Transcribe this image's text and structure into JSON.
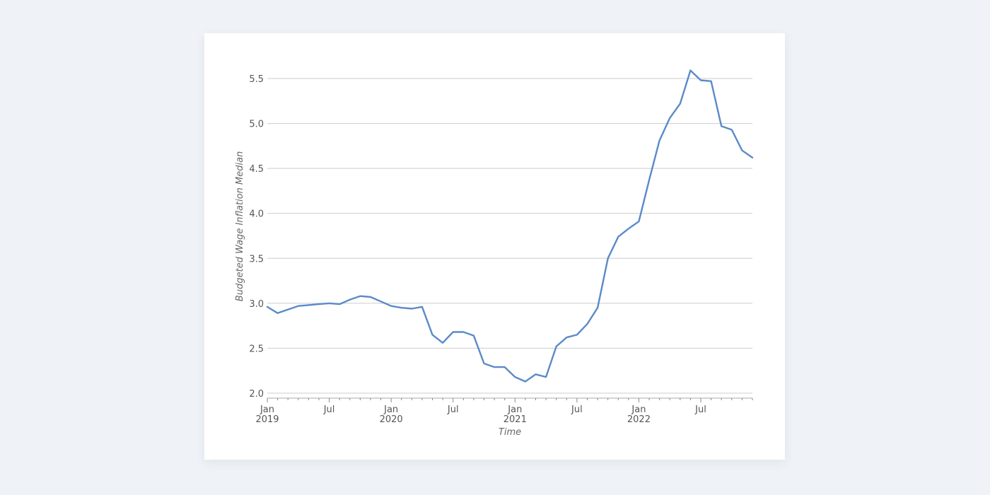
{
  "chart_data": {
    "type": "line",
    "title": "",
    "xlabel": "Time",
    "ylabel": "Budgeted Wage Inflation Median",
    "x_range": [
      "2019-01",
      "2022-12"
    ],
    "ylim": [
      2.0,
      5.7
    ],
    "y_ticks": [
      "2.0",
      "2.5",
      "3.0",
      "3.5",
      "4.0",
      "4.5",
      "5.0",
      "5.5"
    ],
    "x_ticks": [
      {
        "date": "2019-01",
        "line1": "Jan",
        "line2": "2019"
      },
      {
        "date": "2019-07",
        "line1": "Jul",
        "line2": ""
      },
      {
        "date": "2020-01",
        "line1": "Jan",
        "line2": "2020"
      },
      {
        "date": "2020-07",
        "line1": "Jul",
        "line2": ""
      },
      {
        "date": "2021-01",
        "line1": "Jan",
        "line2": "2021"
      },
      {
        "date": "2021-07",
        "line1": "Jul",
        "line2": ""
      },
      {
        "date": "2022-01",
        "line1": "Jan",
        "line2": "2022"
      },
      {
        "date": "2022-07",
        "line1": "Jul",
        "line2": ""
      }
    ],
    "grid": true,
    "line_color": "#5b8ac8",
    "series": [
      {
        "x": [
          "2019-01",
          "2019-02",
          "2019-03",
          "2019-04",
          "2019-05",
          "2019-06",
          "2019-07",
          "2019-08",
          "2019-09",
          "2019-10",
          "2019-11",
          "2019-12",
          "2020-01",
          "2020-02",
          "2020-03",
          "2020-04",
          "2020-05",
          "2020-06",
          "2020-07",
          "2020-08",
          "2020-09",
          "2020-10",
          "2020-11",
          "2020-12",
          "2021-01",
          "2021-02",
          "2021-03",
          "2021-04",
          "2021-05",
          "2021-06",
          "2021-07",
          "2021-08",
          "2021-09",
          "2021-10",
          "2021-11",
          "2021-12",
          "2022-01",
          "2022-02",
          "2022-03",
          "2022-04",
          "2022-05",
          "2022-06",
          "2022-07",
          "2022-08",
          "2022-09",
          "2022-10",
          "2022-11",
          "2022-12"
        ],
        "values": [
          2.96,
          2.89,
          2.93,
          2.97,
          2.98,
          2.99,
          3.0,
          2.99,
          3.04,
          3.08,
          3.07,
          3.02,
          2.97,
          2.95,
          2.94,
          2.96,
          2.65,
          2.56,
          2.68,
          2.68,
          2.64,
          2.33,
          2.29,
          2.29,
          2.18,
          2.13,
          2.21,
          2.18,
          2.52,
          2.62,
          2.65,
          2.77,
          2.95,
          3.5,
          3.74,
          3.83,
          3.91,
          4.37,
          4.81,
          5.06,
          5.22,
          5.59,
          5.48,
          5.47,
          4.97,
          4.93,
          4.7,
          4.62
        ]
      }
    ]
  }
}
